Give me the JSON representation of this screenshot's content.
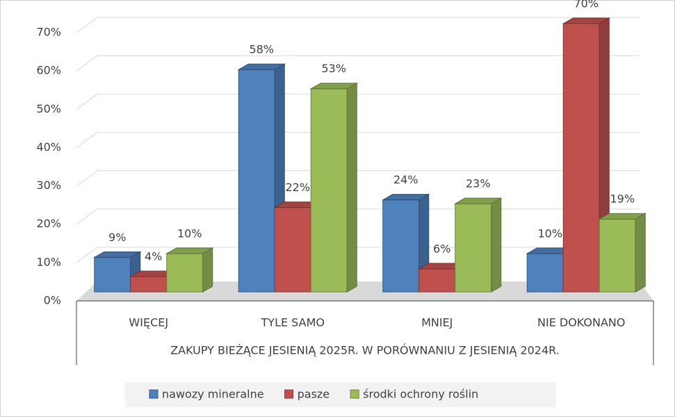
{
  "chart_data": {
    "type": "bar3d",
    "x_label": "ZAKUPY BIEŻĄCE JESIENIĄ 2025R. W PORÓWNANIU Z JESIENIĄ 2024R.",
    "categories": [
      "WIĘCEJ",
      "TYLE SAMO",
      "MNIEJ",
      "NIE DOKONANO"
    ],
    "series": [
      {
        "name": "nawozy mineralne",
        "color": "#4f81bd",
        "values": [
          9,
          58,
          24,
          10
        ],
        "value_labels": [
          "9%",
          "58%",
          "24%",
          "10%"
        ]
      },
      {
        "name": "pasze",
        "color": "#c0504d",
        "values": [
          4,
          22,
          6,
          70
        ],
        "value_labels": [
          "4%",
          "22%",
          "6%",
          "70%"
        ]
      },
      {
        "name": "środki ochrony roślin",
        "color": "#9bbb59",
        "values": [
          10,
          53,
          23,
          19
        ],
        "value_labels": [
          "10%",
          "53%",
          "23%",
          "19%"
        ]
      }
    ],
    "ylim": [
      0,
      70
    ],
    "yticks": [
      {
        "value": 0,
        "label": "0%"
      },
      {
        "value": 10,
        "label": "10%"
      },
      {
        "value": 20,
        "label": "20%"
      },
      {
        "value": 30,
        "label": "30%"
      },
      {
        "value": 40,
        "label": "40%"
      },
      {
        "value": 50,
        "label": "50%"
      },
      {
        "value": 60,
        "label": "60%"
      },
      {
        "value": 70,
        "label": "70%"
      }
    ],
    "grid": true,
    "legend": "bottom"
  }
}
